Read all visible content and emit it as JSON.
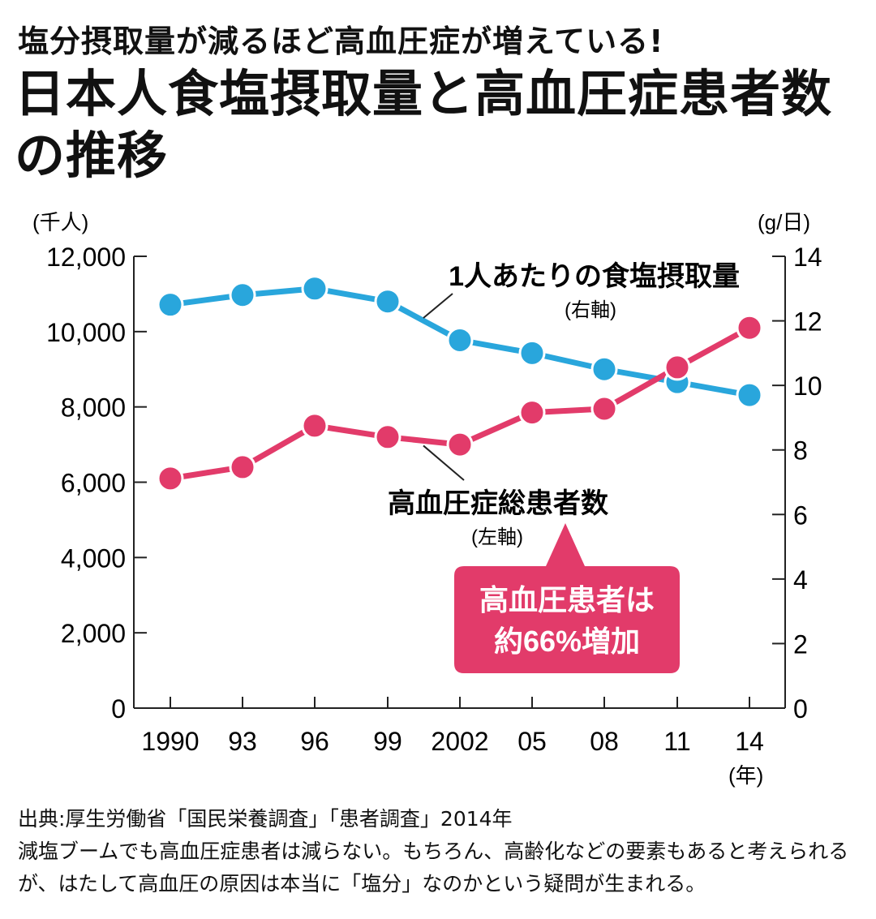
{
  "subtitle": "塩分摂取量が減るほど高血圧症が増えている!",
  "title": "日本人食塩摂取量と高血圧症患者数の推移",
  "source": "出典:厚生労働省「国民栄養調査」「患者調査」2014年",
  "caption": "減塩ブームでも高血圧症患者は減らない。もちろん、高齢化などの要素もあると考えられるが、はたして高血圧の原因は本当に「塩分」なのかという疑問が生まれる。",
  "chart_data": {
    "type": "line",
    "categories": [
      "1990",
      "93",
      "96",
      "99",
      "2002",
      "05",
      "08",
      "11",
      "14"
    ],
    "x_unit": "(年)",
    "y_left": {
      "unit": "(千人)",
      "range": [
        0,
        12000
      ],
      "ticks": [
        "12,000",
        "10,000",
        "8,000",
        "6,000",
        "4,000",
        "2,000",
        "0"
      ]
    },
    "y_right": {
      "unit": "(g/日)",
      "range": [
        0,
        14
      ],
      "ticks": [
        "14",
        "12",
        "10",
        "8",
        "6",
        "4",
        "2",
        "0"
      ]
    },
    "grid": false,
    "series": [
      {
        "name": "1人あたりの食塩摂取量",
        "axis_label": "(右軸)",
        "axis": "right",
        "color": "#29a6dc",
        "values": [
          12.5,
          12.8,
          13.0,
          12.6,
          11.4,
          11.0,
          10.5,
          10.1,
          9.7
        ]
      },
      {
        "name": "高血圧症総患者数",
        "axis_label": "(左軸)",
        "axis": "left",
        "color": "#e23b6a",
        "values": [
          6100,
          6400,
          7500,
          7200,
          7000,
          7850,
          7950,
          9050,
          10100
        ]
      }
    ],
    "annotation": {
      "text_line1": "高血圧患者は",
      "text_line2": "約66%増加",
      "color": "#e23b6a"
    }
  }
}
